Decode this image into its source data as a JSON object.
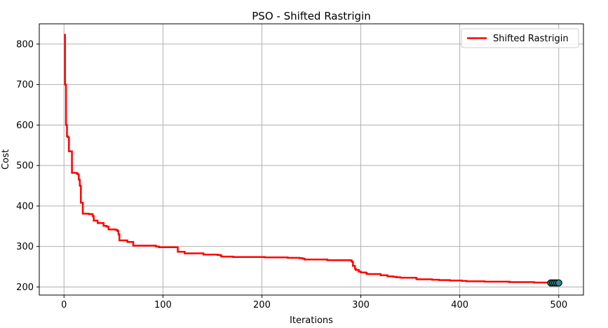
{
  "chart_data": {
    "type": "line",
    "title": "PSO - Shifted Rastrigin",
    "xlabel": "Iterations",
    "ylabel": "Cost",
    "xlim": [
      -25,
      525
    ],
    "ylim": [
      180,
      850
    ],
    "xticks": [
      0,
      100,
      200,
      300,
      400,
      500
    ],
    "yticks": [
      200,
      300,
      400,
      500,
      600,
      700,
      800
    ],
    "grid": true,
    "legend_position": "top-right",
    "series": [
      {
        "name": "Shifted Rastrigin",
        "color": "#ff0000",
        "style": "step",
        "x": [
          0,
          1,
          2,
          3,
          4,
          5,
          7,
          8,
          10,
          13,
          14,
          15,
          16,
          17,
          19,
          22,
          25,
          27,
          29,
          30,
          33,
          34,
          39,
          40,
          42,
          43,
          45,
          50,
          52,
          54,
          55,
          56,
          62,
          64,
          69,
          70,
          90,
          93,
          96,
          113,
          115,
          121,
          122,
          139,
          141,
          155,
          158,
          159,
          169,
          171,
          201,
          203,
          224,
          226,
          236,
          238,
          241,
          243,
          264,
          266,
          290,
          291,
          292,
          294,
          295,
          298,
          300,
          305,
          306,
          319,
          320,
          325,
          327,
          330,
          333,
          336,
          340,
          352,
          356,
          357,
          363,
          372,
          379,
          388,
          390,
          402,
          407,
          425,
          450,
          475,
          499
        ],
        "y": [
          823,
          700,
          600,
          572,
          570,
          535,
          535,
          482,
          482,
          480,
          478,
          465,
          450,
          408,
          381,
          381,
          380,
          380,
          375,
          364,
          364,
          358,
          358,
          351,
          351,
          349,
          342,
          342,
          341,
          338,
          330,
          315,
          315,
          311,
          311,
          302,
          302,
          300,
          298,
          298,
          287,
          287,
          283,
          283,
          280,
          279,
          278,
          275,
          275,
          274,
          274,
          273,
          273,
          272,
          272,
          271,
          270,
          268,
          268,
          266,
          265,
          262,
          252,
          245,
          242,
          238,
          236,
          235,
          232,
          232,
          229,
          229,
          226,
          226,
          225,
          224,
          223,
          223,
          220,
          219,
          219,
          218,
          217,
          217,
          216,
          215,
          214,
          213,
          212,
          211,
          210
        ]
      }
    ],
    "markers": [
      {
        "name": "end-cluster",
        "x": [
          492,
          494,
          496,
          498,
          500
        ],
        "y": [
          210,
          210,
          210,
          210,
          210
        ],
        "fill": "#2b8c8c",
        "edge": "#000000"
      }
    ]
  }
}
